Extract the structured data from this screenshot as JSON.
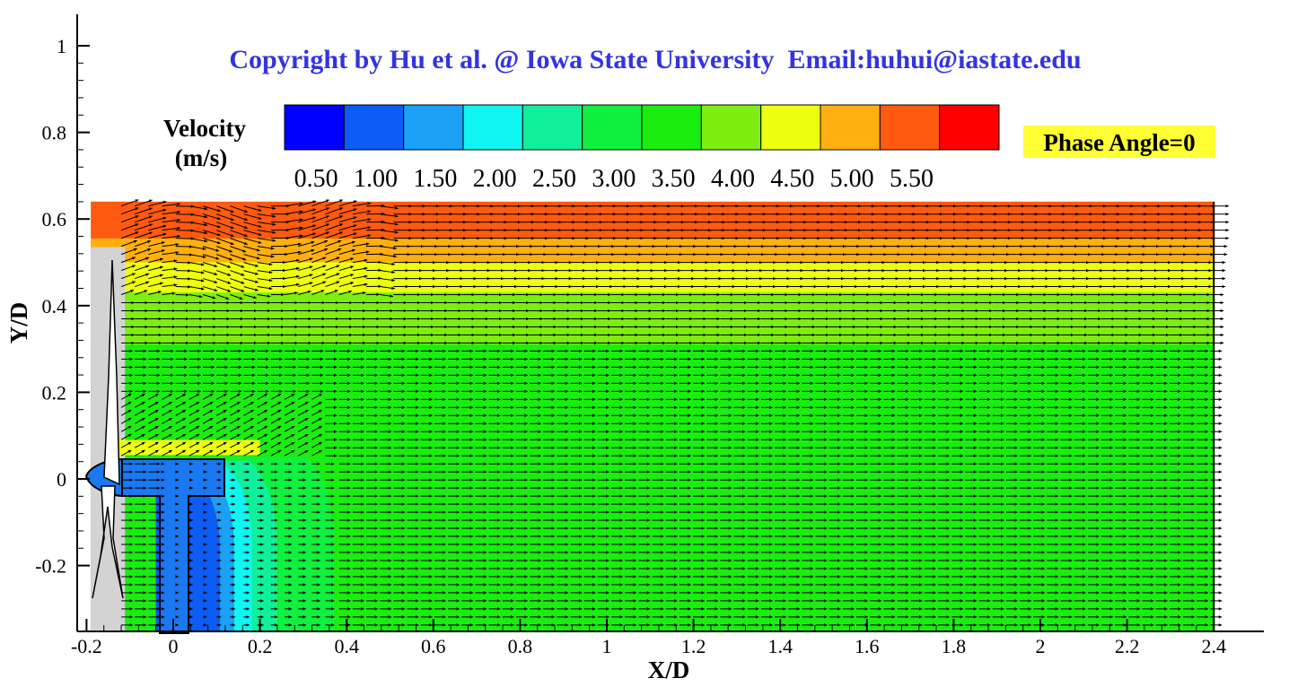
{
  "copyright": "Copyright by Hu et al. @ Iowa State University  Email:huhui@iastate.edu",
  "phase_label": "Phase Angle=0",
  "colors": {
    "copyright_text": "#3333e0",
    "phase_bg": "#ffff33",
    "domain_bg": "#d3d3d3",
    "nacelle": "#1a78f0",
    "blade": "#ffffff",
    "vector": "#000000"
  },
  "legend": {
    "title_line1": "Velocity",
    "title_line2": "(m/s)",
    "colors": [
      "#0000ff",
      "#0d5cf5",
      "#1aa0f5",
      "#10f5f0",
      "#10f09a",
      "#10f040",
      "#1aee10",
      "#7eee10",
      "#eeff10",
      "#ffb010",
      "#ff5a10",
      "#ff0000"
    ],
    "labels": [
      "0.50",
      "1.00",
      "1.50",
      "2.00",
      "2.50",
      "3.00",
      "3.50",
      "4.00",
      "4.50",
      "5.00",
      "5.50"
    ]
  },
  "chart_data": {
    "type": "contour",
    "title": "",
    "xlabel": "X/D",
    "ylabel": "Y/D",
    "xlim": [
      -0.21,
      2.52
    ],
    "ylim": [
      -0.35,
      1.07
    ],
    "grid": false,
    "xticks": [
      -0.2,
      0,
      0.2,
      0.4,
      0.6,
      0.8,
      1,
      1.2,
      1.4,
      1.6,
      1.8,
      2,
      2.2,
      2.4
    ],
    "xtick_labels": [
      "-0.2",
      "0",
      "0.2",
      "0.4",
      "0.6",
      "0.8",
      "1",
      "1.2",
      "1.4",
      "1.6",
      "1.8",
      "2",
      "2.2",
      "2.4"
    ],
    "yticks": [
      -0.2,
      0,
      0.2,
      0.4,
      0.6,
      0.8,
      1
    ],
    "ytick_labels": [
      "-0.2",
      "0",
      "0.2",
      "0.4",
      "0.6",
      "0.8",
      "1"
    ],
    "measurement_window": {
      "x": [
        -0.19,
        2.4
      ],
      "y": [
        -0.35,
        0.64
      ]
    },
    "velocity_bands": [
      {
        "y_range": [
          0.555,
          0.64
        ],
        "velocity": 5.2
      },
      {
        "y_range": [
          0.5,
          0.555
        ],
        "velocity": 4.75
      },
      {
        "y_range": [
          0.43,
          0.5
        ],
        "velocity": 4.25
      },
      {
        "y_range": [
          0.31,
          0.43
        ],
        "velocity": 3.75
      },
      {
        "y_range": [
          -0.35,
          0.31
        ],
        "velocity": 3.25
      }
    ],
    "wake_region": {
      "x": [
        -0.04,
        0.37
      ],
      "y": [
        -0.35,
        0.05
      ],
      "velocity_min": 0.5,
      "velocity_max": 2.7
    },
    "vector_field": {
      "x_spacing": 0.0314,
      "y_spacing": 0.0186,
      "arrow_scale": 0.0082
    }
  }
}
